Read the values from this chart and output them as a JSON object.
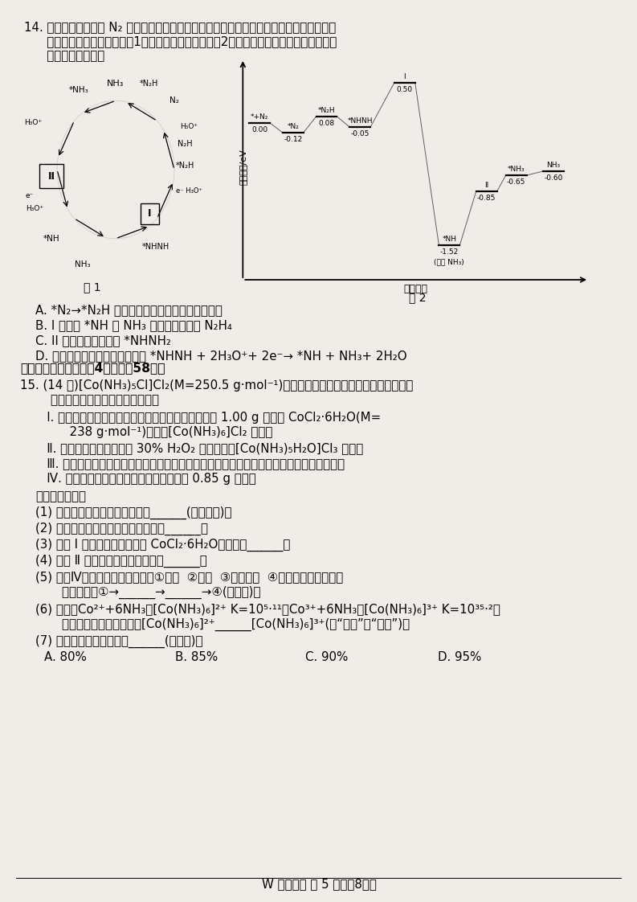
{
  "page_bg": "#f0ede8",
  "line1": "14. 科研人员利用高压 N₂ 气流将水微滴噴射到涂覆催化劉的石墨网上，研究常温制氨，其反",
  "line2": "   应历程中微粒转化关系如图1，相对能量变化关系如图2，图中＊表示催化劑表面吸附位。",
  "line3": "   下列说法正确的是",
  "optA": "A. *N₂→*N₂H 过程中发生非极性键的断裂与形成",
  "optB": "B. I 转化为 *NH 和 NH₃ 的过程中会生成 N₂H₄",
  "optC": "C. II 表示的微粒符号是 *NHNH₂",
  "optD": "D. 反应历程中放热最多的反应是 *NHNH + 2H₃O⁺+ 2e⁻→ *NH + NH₃+ 2H₂O",
  "sec2": "二、非选择题：本题共4小题，入58分。",
  "q15a": "15. (14 分)[Co(NH₃)₅Cl]Cl₂(M=250.5 g·mol⁻¹)是一种易溦于热水，难溦于乙醇的紫红色",
  "q15b": "    晶体。可通过如下实验步骤制备。",
  "s1a": "   Ⅰ. 将适量氯化铵溢于浓氨水中，搞拌下，分批次加入 1.00 g 研细的 CoCl₂·6H₂O(M=",
  "s1b": "      238 g·mol⁻¹)，得到[Co(NH₃)₆]Cl₂ 沉淠。",
  "s2": "   Ⅱ. 边搞拌边慢慢滴入足量 30% H₂O₂ 溶液，得到[Co(NH₃)₅H₂O]Cl₃ 溶液。",
  "s3": "   Ⅲ. 慢慢注入适量浓盐酸，得到沉淠，水溶加热，冷却至室温，得到紫红色晶体，减压过滤。",
  "s4": "   Ⅳ. 依次用不同试剑洗涘晶体，烘干，得到 0.85 g 产品。",
  "ans0": "回答下列问题：",
  "ans1": "(1) 本实验涉及靴配合物的配体有______(填化学式)。",
  "ans2": "(2) 本实验应在通风橱中进行，原因是______。",
  "ans3": "(3) 步骤 I 中分批次加入研细的 CoCl₂·6H₂O，原因是______。",
  "ans4": "(4) 步骤 Ⅱ 发生反应的离子方程式是______。",
  "ans5a": "(5) 步骤Ⅳ中使用的洗涘试剑有：①冷水  ②乙醇  ③冷的盐酸  ④丙酮。试剑使用的先",
  "ans5b": "    后顺序是：①→______→______→④(填序号)。",
  "ans6a": "(6) 已知：Co²⁺+6NH₃＝[Co(NH₃)₆]²⁺ K=10⁵·¹¹；Co³⁺+6NH₃＝[Co(NH₃)₆]³⁺ K=10³⁵·²。",
  "ans6b": "    则在水溶液中的稳定性：[Co(NH₃)₆]²⁺______[Co(NH₃)₆]³⁺(填“大于”或“小于”)。",
  "ans7": "(7) 本实验的产率最接近于______(填标号)。",
  "ans7opts": "    A. 80%          B. 85%          C. 90%          D. 95%",
  "footer": "W 化学试题 第 5 页（共8页）"
}
